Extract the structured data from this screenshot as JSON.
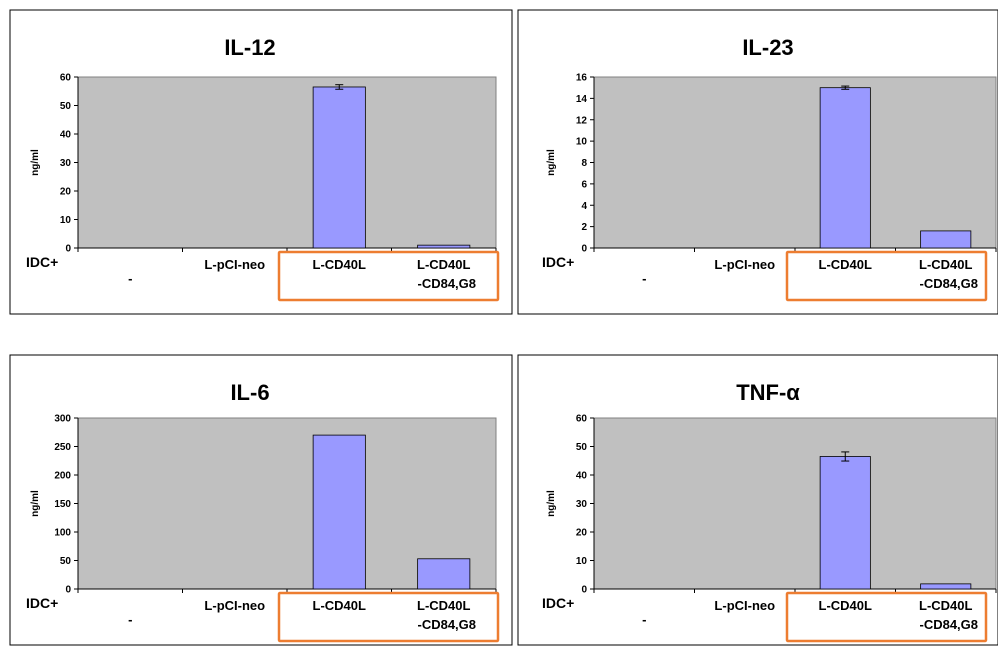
{
  "colors": {
    "plot_background": "#c0c0c0",
    "bar_fill": "#9999ff",
    "highlight_box": "#ed7d31"
  },
  "chart_data": [
    {
      "type": "bar",
      "title": "IL-12",
      "ylabel": "ng/ml",
      "category_prefix": "IDC+",
      "categories": [
        "-",
        "L-pCI-neo",
        "L-CD40L",
        "L-CD40L\n-CD84,G8"
      ],
      "values": [
        0,
        0,
        56.5,
        1.0
      ],
      "errors": [
        0,
        0,
        0.8,
        0
      ],
      "ylim": [
        0,
        60
      ],
      "yticks": [
        0,
        10,
        20,
        30,
        40,
        50,
        60
      ],
      "legend": "none",
      "highlight_categories": [
        2,
        3
      ]
    },
    {
      "type": "bar",
      "title": "IL-23",
      "ylabel": "ng/ml",
      "category_prefix": "IDC+",
      "categories": [
        "-",
        "L-pCI-neo",
        "L-CD40L",
        "L-CD40L\n-CD84,G8"
      ],
      "values": [
        0,
        0,
        15.0,
        1.6
      ],
      "errors": [
        0,
        0,
        0.15,
        0
      ],
      "ylim": [
        0,
        16
      ],
      "yticks": [
        0,
        2,
        4,
        6,
        8,
        10,
        12,
        14,
        16
      ],
      "legend": "none",
      "highlight_categories": [
        2,
        3
      ]
    },
    {
      "type": "bar",
      "title": "IL-6",
      "ylabel": "ng/ml",
      "category_prefix": "IDC+",
      "categories": [
        "-",
        "L-pCI-neo",
        "L-CD40L",
        "L-CD40L\n-CD84,G8"
      ],
      "values": [
        0,
        0,
        270,
        53
      ],
      "errors": [
        0,
        0,
        0,
        0
      ],
      "ylim": [
        0,
        300
      ],
      "yticks": [
        0,
        50,
        100,
        150,
        200,
        250,
        300
      ],
      "legend": "none",
      "highlight_categories": [
        2,
        3
      ]
    },
    {
      "type": "bar",
      "title": "TNF-α",
      "ylabel": "ng/ml",
      "category_prefix": "IDC+",
      "categories": [
        "-",
        "L-pCI-neo",
        "L-CD40L",
        "L-CD40L\n-CD84,G8"
      ],
      "values": [
        0,
        0,
        46.5,
        1.8
      ],
      "errors": [
        0,
        0,
        1.6,
        0
      ],
      "ylim": [
        0,
        60
      ],
      "yticks": [
        0,
        10,
        20,
        30,
        40,
        50,
        60
      ],
      "legend": "none",
      "highlight_categories": [
        2,
        3
      ]
    }
  ]
}
